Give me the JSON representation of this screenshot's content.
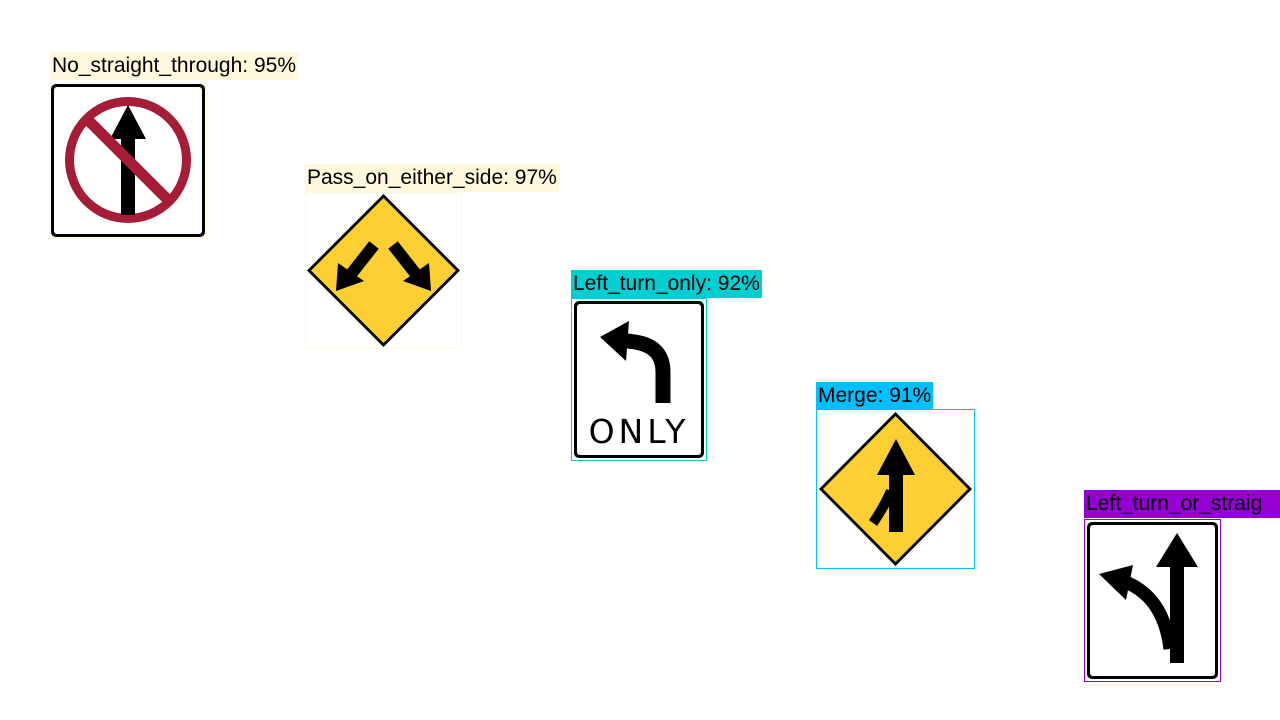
{
  "detections": [
    {
      "name": "No_straight_through",
      "label": "No_straight_through: 95%",
      "sign_icon": "no-straight-through-sign-icon",
      "color": "#fff8dc"
    },
    {
      "name": "Pass_on_either_side",
      "label": "Pass_on_either_side: 97%",
      "sign_icon": "pass-on-either-side-sign-icon",
      "color": "#fff8dc"
    },
    {
      "name": "Left_turn_only",
      "label": "Left_turn_only: 92%",
      "sign_icon": "left-turn-only-sign-icon",
      "sign_text": "ONLY",
      "color": "#00ced1"
    },
    {
      "name": "Merge",
      "label": "Merge: 91%",
      "sign_icon": "merge-sign-icon",
      "color": "#00bfff"
    },
    {
      "name": "Left_turn_or_straight",
      "label": "Left_turn_or_straig",
      "sign_icon": "left-turn-or-straight-sign-icon",
      "color": "#9400d3"
    }
  ],
  "colors": {
    "warning_yellow": "#fcd033",
    "prohibition_red": "#a51d36"
  }
}
